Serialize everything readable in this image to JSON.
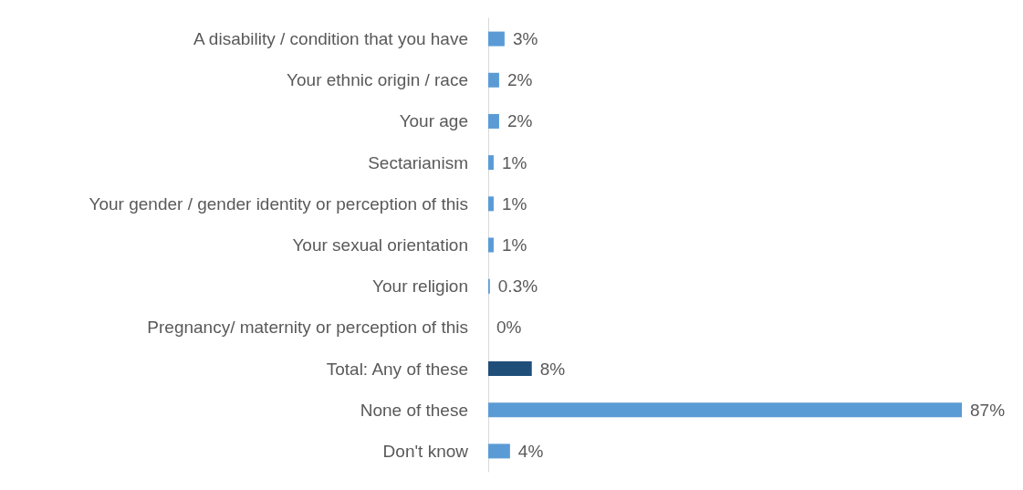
{
  "chart_data": {
    "type": "bar",
    "orientation": "horizontal",
    "categories": [
      "A disability / condition that you have",
      "Your ethnic origin / race",
      "Your age",
      "Sectarianism",
      "Your gender / gender identity or perception of this",
      "Your sexual orientation",
      "Your religion",
      "Pregnancy/ maternity or perception of this",
      "Total: Any of these",
      "None of these",
      "Don't know"
    ],
    "values": [
      3,
      2,
      2,
      1,
      1,
      1,
      0.3,
      0,
      8,
      87,
      4
    ],
    "value_labels": [
      "3%",
      "2%",
      "2%",
      "1%",
      "1%",
      "1%",
      "0.3%",
      "0%",
      "8%",
      "87%",
      "4%"
    ],
    "colors": [
      "#5b9bd5",
      "#5b9bd5",
      "#5b9bd5",
      "#5b9bd5",
      "#5b9bd5",
      "#5b9bd5",
      "#5b9bd5",
      "#5b9bd5",
      "#1f4e79",
      "#5b9bd5",
      "#5b9bd5"
    ]
  }
}
